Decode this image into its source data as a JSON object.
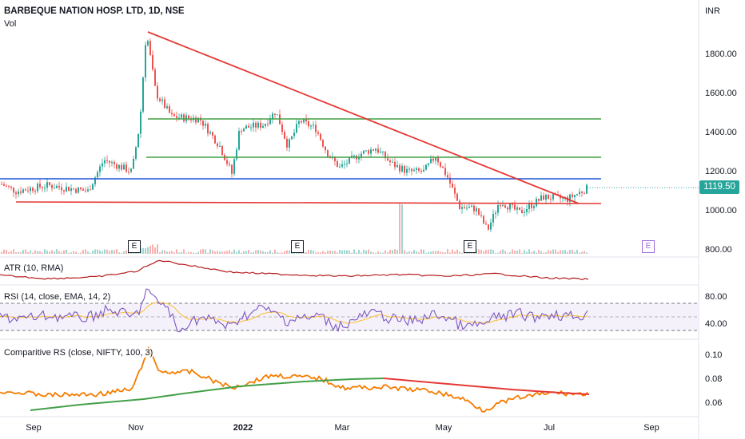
{
  "header": {
    "symbol_title": "BARBEQUE NATION HOSP. LTD, 1D, NSE",
    "volume_label": "Vol",
    "currency": "INR"
  },
  "price_axis": {
    "ticks": [
      "1800.00",
      "1600.00",
      "1400.00",
      "1200.00",
      "1000.00",
      "800.00"
    ],
    "last_price": "1119.50"
  },
  "earnings_badge": "E",
  "indicators": {
    "atr": {
      "title": "ATR (10, RMA)"
    },
    "rsi": {
      "title": "RSI (14, close, EMA, 14, 2)",
      "ticks": [
        "80.00",
        "40.00"
      ]
    },
    "crs": {
      "title": "Comparitive RS (close, NIFTY, 100, 3)",
      "ticks": [
        "0.10",
        "0.08",
        "0.06"
      ]
    }
  },
  "time_axis": [
    "Sep",
    "Nov",
    "2022",
    "Mar",
    "May",
    "Jul",
    "Sep"
  ],
  "colors": {
    "up": "#26a69a",
    "down": "#ef5350",
    "trendline": "#e53935",
    "support_green": "#43a047",
    "support_blue": "#1e56d6",
    "rsi_line": "#7e57c2",
    "rsi_ma": "#fbc02d",
    "crs_line": "#f57c00"
  }
}
